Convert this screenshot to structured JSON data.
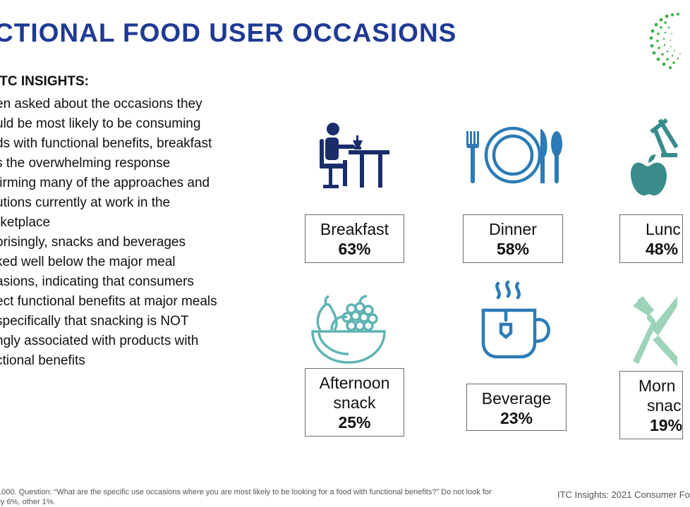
{
  "title": "CTIONAL FOOD USER OCCASIONS",
  "insights": {
    "heading": "ITC INSIGHTS:",
    "lines": [
      "en asked about the occasions they",
      "uld be most likely to be consuming",
      "ds with functional benefits, breakfast",
      "s the overwhelming response",
      "firming many of the approaches and",
      "utions currently at work in the",
      "rketplace",
      "prisingly, snacks and beverages",
      "ked well below the major meal",
      "asions, indicating that consumers",
      "ect functional benefits at major meals",
      "specifically that snacking is NOT",
      "ngly associated with products with",
      "ctional benefits"
    ]
  },
  "occasions": [
    {
      "label": "Breakfast",
      "label2": "",
      "percent": "63%",
      "icon": "breakfast-person-at-table-icon"
    },
    {
      "label": "Dinner",
      "label2": "",
      "percent": "58%",
      "icon": "plate-fork-knife-spoon-icon"
    },
    {
      "label": "Lunc",
      "label2": "",
      "percent": "48%",
      "icon": "apple-lunch-icon"
    },
    {
      "label": "Afternoon",
      "label2": "snack",
      "percent": "25%",
      "icon": "fruit-bowl-icon"
    },
    {
      "label": "Beverage",
      "label2": "",
      "percent": "23%",
      "icon": "tea-cup-icon"
    },
    {
      "label": "Morn",
      "label2": "snac",
      "percent": "19%",
      "icon": "fork-knife-crossed-icon"
    }
  ],
  "colors": {
    "title": "#1f3a93",
    "icon_navy": "#1a2d6b",
    "icon_blue": "#2c7bb6",
    "icon_teal": "#3a8c8c",
    "icon_light_teal": "#5fb3b3",
    "icon_mint": "#9dd3b8",
    "logo_green": "#3fae49"
  },
  "footer": {
    "note_line1": "1000. Question: “What are the specific use occasions where you are most likely to be looking for a food with functional benefits?” Do not look for",
    "note_line2": "lly 6%, other 1%.",
    "source": "ITC Insights: 2021 Consumer Fo"
  }
}
